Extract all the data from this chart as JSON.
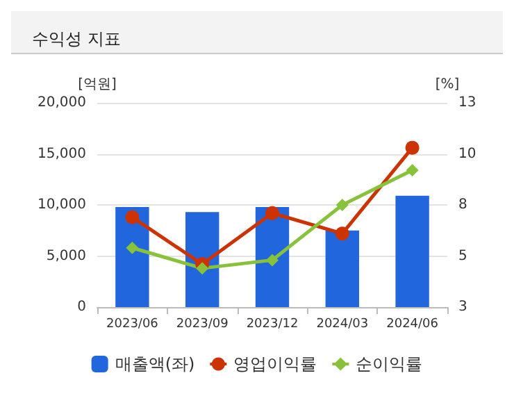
{
  "chart_data": {
    "type": "bar",
    "title": "수익성 지표",
    "ylabel": "[억원]",
    "y2label": "[%]",
    "categories": [
      "2023/06",
      "2023/09",
      "2023/12",
      "2024/03",
      "2024/06"
    ],
    "series": [
      {
        "name": "매출액(좌)",
        "color": "#2266dd",
        "values": [
          9800,
          9300,
          9800,
          7500,
          10900
        ]
      },
      {
        "name": "영업이익률",
        "type": "line",
        "axis": "y2",
        "marker": "circle",
        "color": "#cc3300",
        "values": [
          7.4,
          5.1,
          7.6,
          6.6,
          10.8
        ]
      },
      {
        "name": "순이익률",
        "type": "line",
        "axis": "y2",
        "marker": "diamond",
        "color": "#88c23a",
        "values": [
          5.9,
          4.9,
          5.3,
          8.0,
          9.7
        ]
      }
    ],
    "ylim": [
      0,
      20000
    ],
    "yticks": [
      0,
      {
        "value": 5000,
        "label": "5,000"
      },
      {
        "value": 10000,
        "label": "10,000"
      },
      {
        "value": 15000,
        "label": "15,000"
      },
      {
        "value": 20000,
        "label": "20,000"
      }
    ],
    "y2lim": [
      3,
      13
    ],
    "y2ticks": [
      3,
      {
        "value": 5.5,
        "label": "5"
      },
      8,
      {
        "value": 10.5,
        "label": "10"
      },
      13
    ],
    "grid": "y",
    "legend": "bottom"
  }
}
